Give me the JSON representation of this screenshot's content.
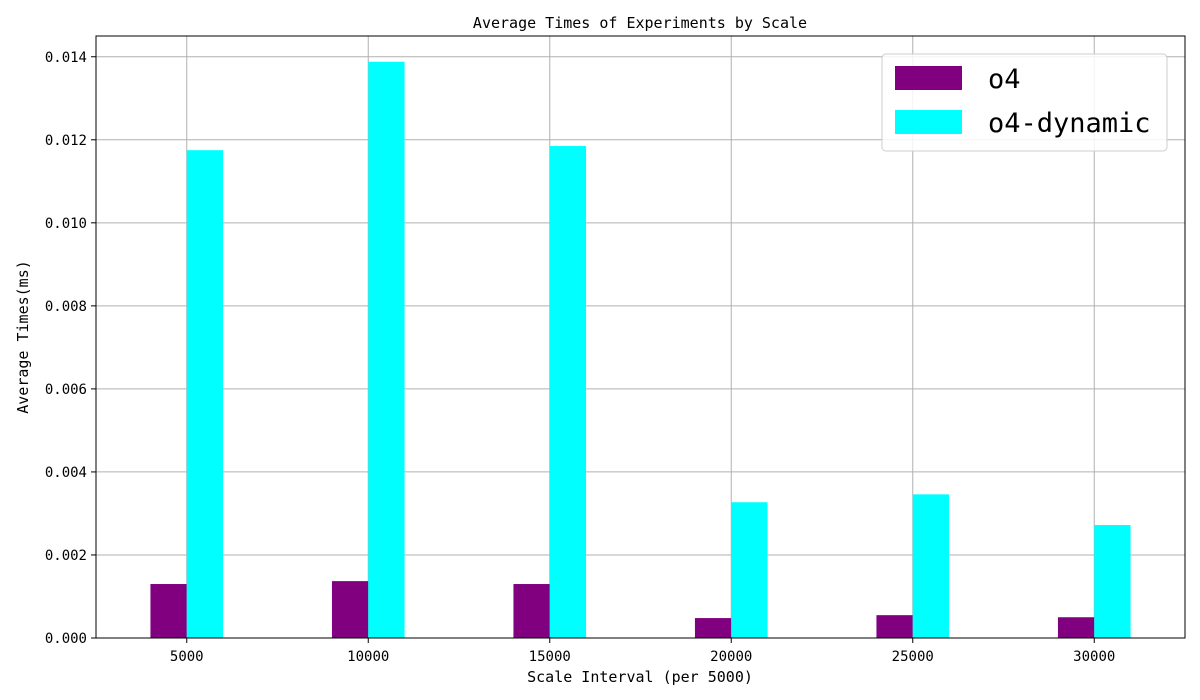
{
  "chart_data": {
    "type": "bar",
    "title": "Average Times of Experiments by Scale",
    "xlabel": "Scale Interval (per 5000)",
    "ylabel": "Average Times(ms)",
    "categories": [
      "5000",
      "10000",
      "15000",
      "20000",
      "25000",
      "30000"
    ],
    "series": [
      {
        "name": "o4",
        "color": "#800080",
        "values": [
          0.0013,
          0.00137,
          0.0013,
          0.00048,
          0.00055,
          0.0005
        ]
      },
      {
        "name": "o4-dynamic",
        "color": "#00ffff",
        "values": [
          0.01175,
          0.01388,
          0.01185,
          0.00327,
          0.00346,
          0.00272
        ]
      }
    ],
    "ylim": [
      0,
      0.0145
    ],
    "yticks": [
      0.0,
      0.002,
      0.004,
      0.006,
      0.008,
      0.01,
      0.012,
      0.014
    ],
    "ytick_labels": [
      "0.000",
      "0.002",
      "0.004",
      "0.006",
      "0.008",
      "0.010",
      "0.012",
      "0.014"
    ],
    "grid": true,
    "legend_position": "top-right"
  }
}
